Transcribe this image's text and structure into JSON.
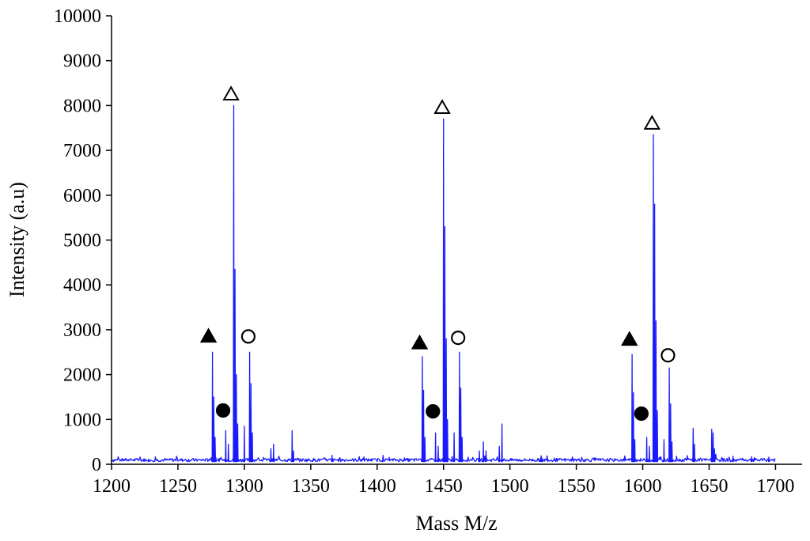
{
  "chart_data": {
    "type": "line",
    "xlabel": "Mass M/z",
    "ylabel": "Intensity (a.u)",
    "xlim": [
      1200,
      1720
    ],
    "ylim": [
      0,
      10000
    ],
    "x_ticks": [
      1200,
      1250,
      1300,
      1350,
      1400,
      1450,
      1500,
      1550,
      1600,
      1650,
      1700
    ],
    "y_ticks": [
      0,
      1000,
      2000,
      3000,
      4000,
      5000,
      6000,
      7000,
      8000,
      9000,
      10000
    ],
    "line_color": "#1a1aff",
    "baseline": 60,
    "data_range": [
      1200,
      1700
    ],
    "peaks": [
      {
        "x": 1276,
        "y": 2500
      },
      {
        "x": 1277,
        "y": 1500
      },
      {
        "x": 1278,
        "y": 600
      },
      {
        "x": 1286,
        "y": 750
      },
      {
        "x": 1288,
        "y": 450
      },
      {
        "x": 1292,
        "y": 8000
      },
      {
        "x": 1293,
        "y": 4350
      },
      {
        "x": 1294,
        "y": 2000
      },
      {
        "x": 1295,
        "y": 900
      },
      {
        "x": 1300,
        "y": 850
      },
      {
        "x": 1304,
        "y": 2500
      },
      {
        "x": 1305,
        "y": 1800
      },
      {
        "x": 1306,
        "y": 700
      },
      {
        "x": 1320,
        "y": 350
      },
      {
        "x": 1322,
        "y": 450
      },
      {
        "x": 1336,
        "y": 750
      },
      {
        "x": 1337,
        "y": 300
      },
      {
        "x": 1366,
        "y": 200
      },
      {
        "x": 1434,
        "y": 2400
      },
      {
        "x": 1435,
        "y": 1650
      },
      {
        "x": 1436,
        "y": 600
      },
      {
        "x": 1444,
        "y": 700
      },
      {
        "x": 1446,
        "y": 400
      },
      {
        "x": 1450,
        "y": 7700
      },
      {
        "x": 1451,
        "y": 5300
      },
      {
        "x": 1452,
        "y": 2800
      },
      {
        "x": 1453,
        "y": 1000
      },
      {
        "x": 1458,
        "y": 700
      },
      {
        "x": 1462,
        "y": 2500
      },
      {
        "x": 1463,
        "y": 1700
      },
      {
        "x": 1464,
        "y": 600
      },
      {
        "x": 1477,
        "y": 300
      },
      {
        "x": 1480,
        "y": 500
      },
      {
        "x": 1482,
        "y": 300
      },
      {
        "x": 1492,
        "y": 400
      },
      {
        "x": 1494,
        "y": 900
      },
      {
        "x": 1524,
        "y": 150
      },
      {
        "x": 1592,
        "y": 2450
      },
      {
        "x": 1593,
        "y": 1600
      },
      {
        "x": 1594,
        "y": 550
      },
      {
        "x": 1603,
        "y": 600
      },
      {
        "x": 1605,
        "y": 400
      },
      {
        "x": 1608,
        "y": 7350
      },
      {
        "x": 1609,
        "y": 5800
      },
      {
        "x": 1610,
        "y": 3200
      },
      {
        "x": 1611,
        "y": 1200
      },
      {
        "x": 1616,
        "y": 550
      },
      {
        "x": 1620,
        "y": 2150
      },
      {
        "x": 1621,
        "y": 1350
      },
      {
        "x": 1622,
        "y": 500
      },
      {
        "x": 1638,
        "y": 800
      },
      {
        "x": 1639,
        "y": 450
      },
      {
        "x": 1652,
        "y": 780
      },
      {
        "x": 1653,
        "y": 700
      },
      {
        "x": 1654,
        "y": 350
      },
      {
        "x": 1668,
        "y": 180
      },
      {
        "x": 1682,
        "y": 170
      },
      {
        "x": 1695,
        "y": 160
      }
    ],
    "markers": [
      {
        "shape": "filled-triangle",
        "x": 1273,
        "y": 2850
      },
      {
        "shape": "open-triangle",
        "x": 1290,
        "y": 8250
      },
      {
        "shape": "filled-circle",
        "x": 1284,
        "y": 1200
      },
      {
        "shape": "open-circle",
        "x": 1303,
        "y": 2850
      },
      {
        "shape": "filled-triangle",
        "x": 1432,
        "y": 2700
      },
      {
        "shape": "open-triangle",
        "x": 1449,
        "y": 7950
      },
      {
        "shape": "filled-circle",
        "x": 1442,
        "y": 1180
      },
      {
        "shape": "open-circle",
        "x": 1461,
        "y": 2820
      },
      {
        "shape": "filled-triangle",
        "x": 1590,
        "y": 2780
      },
      {
        "shape": "open-triangle",
        "x": 1607,
        "y": 7600
      },
      {
        "shape": "filled-circle",
        "x": 1599,
        "y": 1130
      },
      {
        "shape": "open-circle",
        "x": 1619,
        "y": 2430
      }
    ]
  }
}
